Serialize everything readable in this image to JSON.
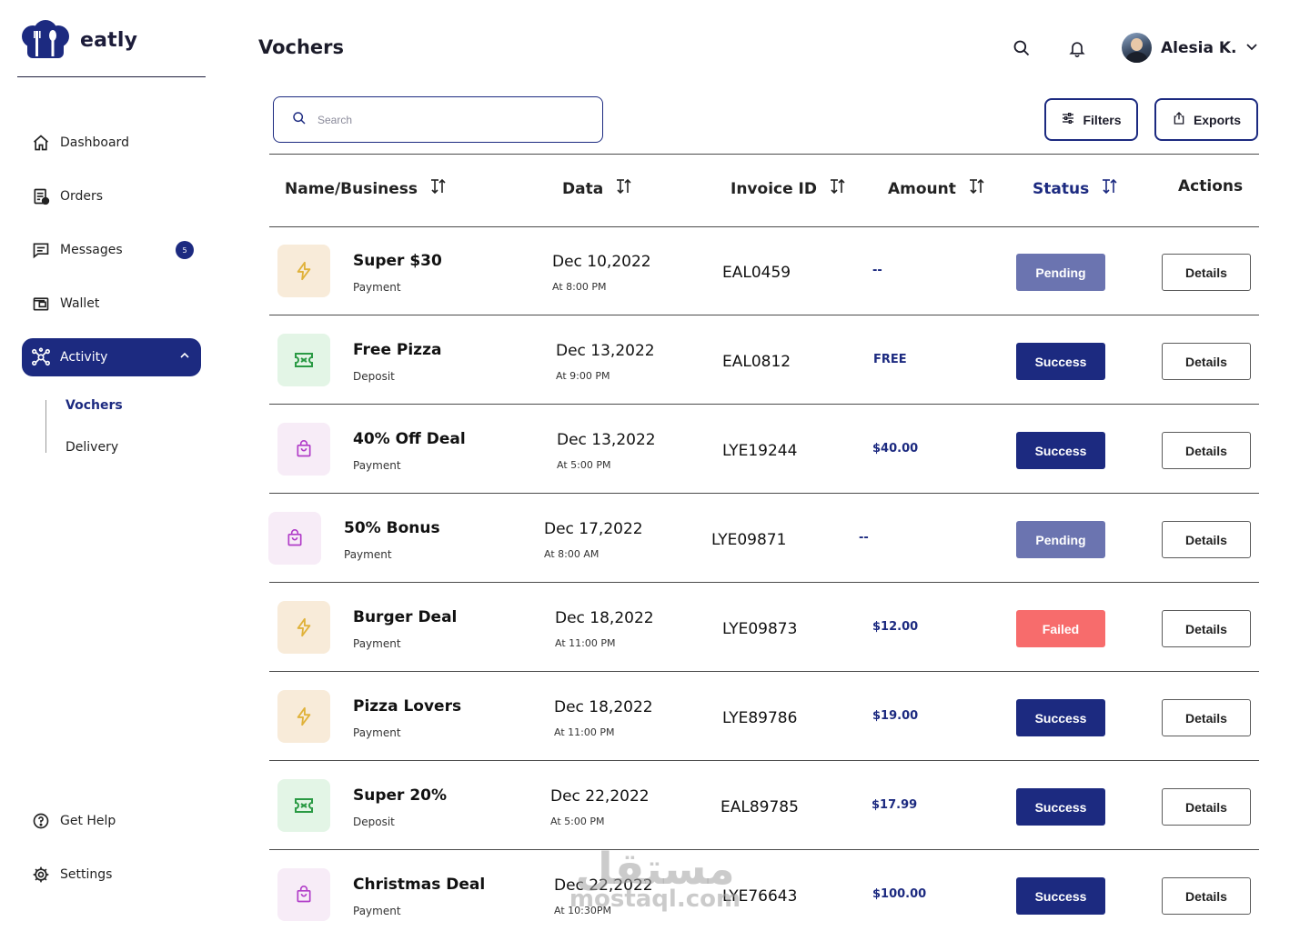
{
  "app": {
    "brand": "eatly"
  },
  "page": {
    "title": "Vochers"
  },
  "header": {
    "search_icon": "search-icon",
    "bell_icon": "bell-icon",
    "user_name": "Alesia K."
  },
  "sidebar": {
    "items": [
      {
        "label": "Dashboard",
        "icon": "home-icon"
      },
      {
        "label": "Orders",
        "icon": "orders-icon"
      },
      {
        "label": "Messages",
        "icon": "messages-icon",
        "badge": "5"
      },
      {
        "label": "Wallet",
        "icon": "wallet-icon"
      },
      {
        "label": "Activity",
        "icon": "activity-icon",
        "active": true
      }
    ],
    "sub_items": [
      {
        "label": "Vochers",
        "active": true
      },
      {
        "label": "Delivery"
      }
    ],
    "bottom_items": [
      {
        "label": "Get Help",
        "icon": "help-icon"
      },
      {
        "label": "Settings",
        "icon": "gear-icon"
      }
    ]
  },
  "toolbar": {
    "search_placeholder": "Search",
    "filters_label": "Filters",
    "exports_label": "Exports"
  },
  "table": {
    "headers": [
      "Name/Business",
      "Data",
      "Invoice ID",
      "Amount",
      "Status",
      "Actions"
    ],
    "details_label": "Details",
    "rows": [
      {
        "name": "Super $30",
        "type": "Payment",
        "date": "Dec 10,2022",
        "time": "At 8:00 PM",
        "invoice": "EAL0459",
        "amount": "--",
        "status": "Pending",
        "icon": "lightning-icon"
      },
      {
        "name": "Free Pizza",
        "type": "Deposit",
        "date": "Dec 13,2022",
        "time": "At 9:00 PM",
        "invoice": "EAL0812",
        "amount": "FREE",
        "status": "Success",
        "icon": "ticket-icon"
      },
      {
        "name": "40% Off Deal",
        "type": "Payment",
        "date": "Dec 13,2022",
        "time": "At 5:00 PM",
        "invoice": "LYE19244",
        "amount": "$40.00",
        "status": "Success",
        "icon": "shopping-bag-icon"
      },
      {
        "name": "50% Bonus",
        "type": "Payment",
        "date": "Dec 17,2022",
        "time": "At 8:00 AM",
        "invoice": "LYE09871",
        "amount": "--",
        "status": "Pending",
        "icon": "shopping-bag-icon"
      },
      {
        "name": "Burger Deal",
        "type": "Payment",
        "date": "Dec 18,2022",
        "time": "At 11:00 PM",
        "invoice": "LYE09873",
        "amount": "$12.00",
        "status": "Failed",
        "icon": "lightning-icon"
      },
      {
        "name": "Pizza Lovers",
        "type": "Payment",
        "date": "Dec 18,2022",
        "time": "At 11:00 PM",
        "invoice": "LYE89786",
        "amount": "$19.00",
        "status": "Success",
        "icon": "lightning-icon"
      },
      {
        "name": "Super 20%",
        "type": "Deposit",
        "date": "Dec 22,2022",
        "time": "At 5:00 PM",
        "invoice": "EAL89785",
        "amount": "$17.99",
        "status": "Success",
        "icon": "ticket-icon"
      },
      {
        "name": "Christmas Deal",
        "type": "Payment",
        "date": "Dec 22,2022",
        "time": "At 10:30PM",
        "invoice": "LYE76643",
        "amount": "$100.00",
        "status": "Success",
        "icon": "shopping-bag-icon"
      }
    ]
  },
  "colors": {
    "primary": "#1c2a80",
    "pending": "#6b74b0",
    "success": "#1c2a80",
    "failed": "#f76c6c",
    "lightning_bg": "#f8ebd9",
    "lightning_fg": "#e0b23a",
    "ticket_bg": "#e3f5e6",
    "ticket_fg": "#2a9a44",
    "bag_bg": "#f7ecf7",
    "bag_fg": "#b13cc8"
  },
  "watermark": {
    "arabic": "مستقل",
    "latin": "mostaql.com"
  }
}
